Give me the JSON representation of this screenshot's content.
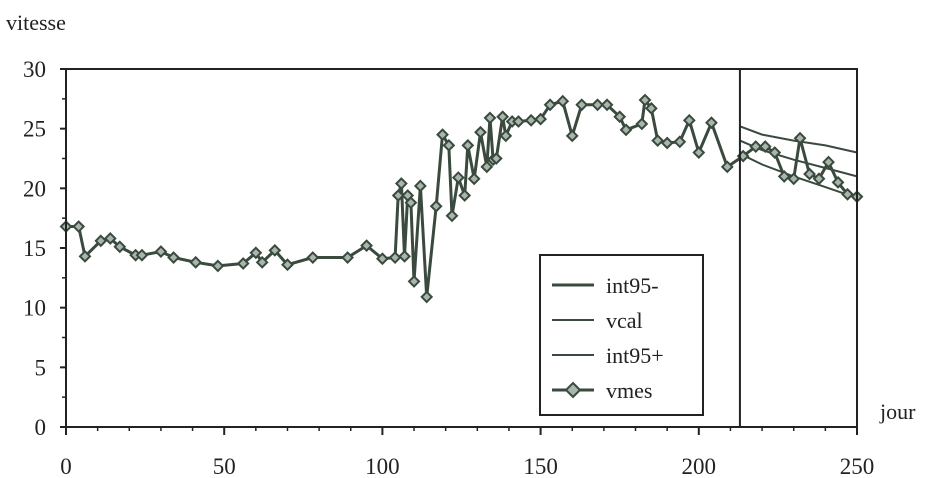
{
  "chart_data": {
    "type": "line",
    "ylabel": "vitesse",
    "xlabel": "jour",
    "xlim": [
      0,
      250
    ],
    "ylim": [
      0,
      30
    ],
    "x_ticks": [
      0,
      50,
      100,
      150,
      200,
      250
    ],
    "y_ticks": [
      0,
      5,
      10,
      15,
      20,
      25,
      30
    ],
    "divider_x": 213,
    "legend_position": "lower-right",
    "colors": {
      "series": "#3a4a3e",
      "frame": "#222222",
      "marker_fill": "#a9b6ab"
    },
    "series": [
      {
        "name": "int95-",
        "marker": "none",
        "x": [
          213,
          220,
          230,
          240,
          250
        ],
        "y": [
          22.9,
          22.0,
          21.0,
          20.1,
          19.2
        ]
      },
      {
        "name": "vcal",
        "marker": "none",
        "x": [
          213,
          220,
          230,
          240,
          250
        ],
        "y": [
          24.0,
          23.2,
          22.4,
          21.7,
          21.0
        ]
      },
      {
        "name": "int95+",
        "marker": "none",
        "x": [
          213,
          220,
          230,
          240,
          250
        ],
        "y": [
          25.2,
          24.5,
          24.0,
          23.6,
          23.0
        ]
      },
      {
        "name": "vmes",
        "marker": "diamond",
        "x": [
          0,
          4,
          6,
          11,
          14,
          17,
          22,
          24,
          30,
          34,
          41,
          48,
          56,
          60,
          62,
          66,
          70,
          78,
          89,
          95,
          100,
          104,
          105,
          106,
          107,
          108,
          109,
          110,
          112,
          114,
          117,
          119,
          121,
          122,
          124,
          126,
          127,
          129,
          131,
          133,
          134,
          135,
          136,
          138,
          139,
          141,
          143,
          147,
          150,
          153,
          157,
          160,
          163,
          168,
          171,
          175,
          177,
          182,
          183,
          185,
          187,
          190,
          194,
          197,
          200,
          204,
          209,
          214,
          218,
          221,
          224,
          227,
          230,
          232,
          235,
          238,
          241,
          244,
          247,
          250
        ],
        "y": [
          16.8,
          16.8,
          14.3,
          15.6,
          15.8,
          15.1,
          14.4,
          14.4,
          14.7,
          14.2,
          13.8,
          13.5,
          13.7,
          14.6,
          13.8,
          14.8,
          13.6,
          14.2,
          14.2,
          15.2,
          14.1,
          14.2,
          19.4,
          20.4,
          14.3,
          19.4,
          18.8,
          12.2,
          20.2,
          10.9,
          18.5,
          24.5,
          23.6,
          17.7,
          20.9,
          19.4,
          23.6,
          20.8,
          24.7,
          21.8,
          25.9,
          22.4,
          22.5,
          26.0,
          24.4,
          25.6,
          25.6,
          25.7,
          25.8,
          27.0,
          27.3,
          24.4,
          27.0,
          27.0,
          27.0,
          26.0,
          24.9,
          25.4,
          27.4,
          26.7,
          24.0,
          23.8,
          23.9,
          25.7,
          23.0,
          25.5,
          21.8,
          22.7,
          23.5,
          23.5,
          23.0,
          21.0,
          20.8,
          24.2,
          21.2,
          20.8,
          22.2,
          20.5,
          19.5,
          19.3
        ]
      }
    ]
  }
}
